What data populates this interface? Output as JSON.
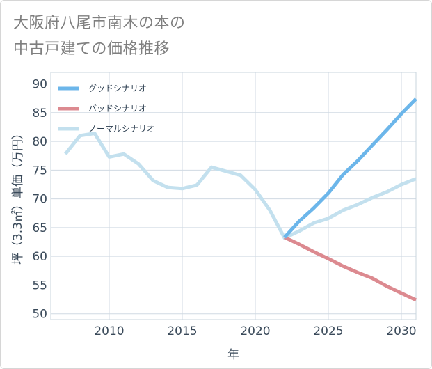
{
  "title": {
    "line1": "大阪府八尾市南木の本の",
    "line2": "中古戸建ての価格推移"
  },
  "chart_data": {
    "type": "line",
    "title": "大阪府八尾市南木の本の中古戸建ての価格推移",
    "xlabel": "年",
    "ylabel": "坪（3.3㎡）単価（万円）",
    "xlim": [
      2006,
      2031
    ],
    "ylim": [
      49,
      92
    ],
    "x_ticks": [
      2010,
      2015,
      2020,
      2025,
      2030
    ],
    "y_ticks": [
      50,
      55,
      60,
      65,
      70,
      75,
      80,
      85,
      90
    ],
    "grid": true,
    "legend_position": "top-left",
    "series": [
      {
        "name": "グッドシナリオ",
        "color": "#6cb6ea",
        "x": [
          2022,
          2023,
          2024,
          2025,
          2026,
          2027,
          2028,
          2029,
          2030,
          2031
        ],
        "y": [
          63.3,
          66.1,
          68.4,
          71.0,
          74.2,
          76.6,
          79.3,
          82.0,
          84.8,
          87.4
        ]
      },
      {
        "name": "バッドシナリオ",
        "color": "#dc8a90",
        "x": [
          2022,
          2023,
          2024,
          2025,
          2026,
          2027,
          2028,
          2029,
          2030,
          2031
        ],
        "y": [
          63.3,
          62.1,
          60.8,
          59.6,
          58.3,
          57.2,
          56.2,
          54.8,
          53.6,
          52.4
        ]
      },
      {
        "name": "ノーマルシナリオ",
        "color": "#c3e0ee",
        "x": [
          2007,
          2008,
          2009,
          2010,
          2011,
          2012,
          2013,
          2014,
          2015,
          2016,
          2017,
          2018,
          2019,
          2020,
          2021,
          2022,
          2023,
          2024,
          2025,
          2026,
          2027,
          2028,
          2029,
          2030,
          2031
        ],
        "y": [
          77.8,
          81.0,
          81.4,
          77.3,
          77.8,
          76.1,
          73.2,
          72.0,
          71.8,
          72.4,
          75.5,
          74.8,
          74.1,
          71.6,
          68.0,
          63.2,
          64.4,
          65.8,
          66.6,
          68.0,
          69.0,
          70.2,
          71.2,
          72.5,
          73.5
        ]
      }
    ]
  }
}
